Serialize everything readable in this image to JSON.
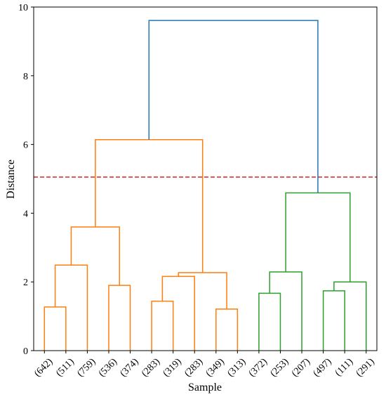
{
  "chart_data": {
    "type": "dendrogram",
    "title": "",
    "xlabel": "Sample",
    "ylabel": "Distance",
    "ylim": [
      0,
      10
    ],
    "yticks": [
      0,
      2,
      4,
      6,
      8,
      10
    ],
    "leaves": [
      "(642)",
      "(511)",
      "(759)",
      "(536)",
      "(374)",
      "(283)",
      "(319)",
      "(283)",
      "(349)",
      "(313)",
      "(372)",
      "(253)",
      "(207)",
      "(497)",
      "(111)",
      "(291)"
    ],
    "threshold": {
      "value": 5.05,
      "color": "#d62728",
      "style": "dashed"
    },
    "links": [
      {
        "left": 0,
        "right": 1,
        "height": 1.27,
        "color": "#ff7f0e"
      },
      {
        "left": 16,
        "right": 2,
        "height": 2.49,
        "color": "#ff7f0e"
      },
      {
        "left": 3,
        "right": 4,
        "height": 1.9,
        "color": "#ff7f0e"
      },
      {
        "left": 17,
        "right": 18,
        "height": 3.6,
        "color": "#ff7f0e"
      },
      {
        "left": 5,
        "right": 6,
        "height": 1.44,
        "color": "#ff7f0e"
      },
      {
        "left": 20,
        "right": 7,
        "height": 2.16,
        "color": "#ff7f0e"
      },
      {
        "left": 8,
        "right": 9,
        "height": 1.21,
        "color": "#ff7f0e"
      },
      {
        "left": 21,
        "right": 22,
        "height": 2.27,
        "color": "#ff7f0e"
      },
      {
        "left": 19,
        "right": 23,
        "height": 6.14,
        "color": "#ff7f0e"
      },
      {
        "left": 10,
        "right": 11,
        "height": 1.67,
        "color": "#2ca02c"
      },
      {
        "left": 25,
        "right": 12,
        "height": 2.29,
        "color": "#2ca02c"
      },
      {
        "left": 13,
        "right": 14,
        "height": 1.74,
        "color": "#2ca02c"
      },
      {
        "left": 27,
        "right": 15,
        "height": 2.0,
        "color": "#2ca02c"
      },
      {
        "left": 26,
        "right": 28,
        "height": 4.59,
        "color": "#2ca02c"
      },
      {
        "left": 24,
        "right": 29,
        "height": 9.61,
        "color": "#1f77b4"
      }
    ]
  }
}
